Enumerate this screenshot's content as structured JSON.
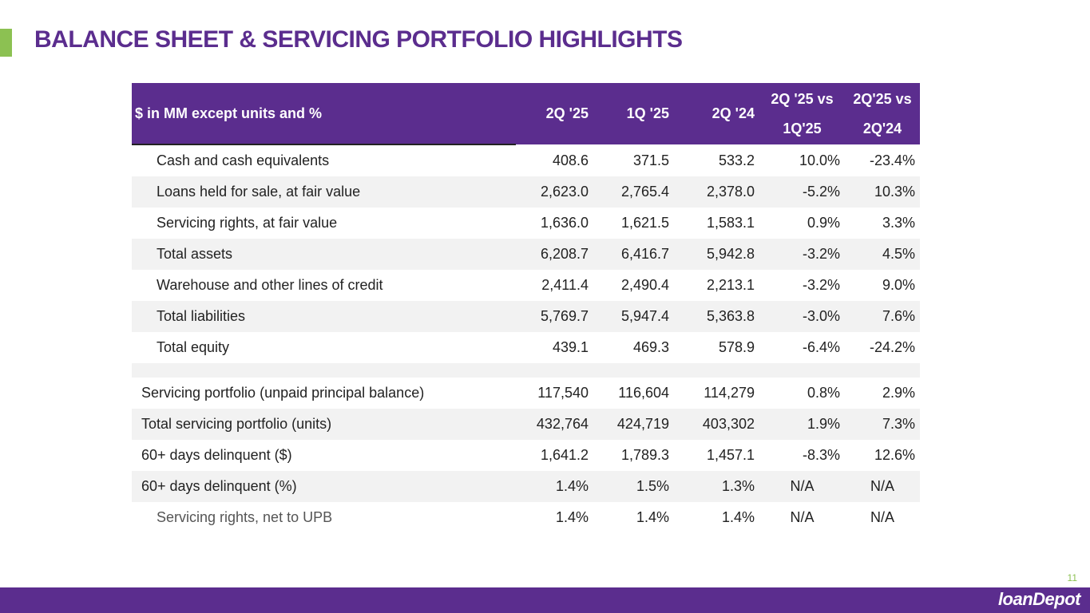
{
  "title": "BALANCE SHEET & SERVICING PORTFOLIO HIGHLIGHTS",
  "page_number": "11",
  "logo_text": "loanDepot",
  "table": {
    "headers": {
      "label": "$ in MM except units and %",
      "c1": "2Q '25",
      "c2": "1Q '25",
      "c3": "2Q '24",
      "c4_line1": "2Q '25 vs",
      "c4_line2": "1Q'25",
      "c5_line1": "2Q'25 vs",
      "c5_line2": "2Q'24"
    },
    "balance_rows": [
      {
        "label": "Cash and cash equivalents",
        "v": [
          "408.6",
          "371.5",
          "533.2",
          "10.0%",
          "-23.4%"
        ]
      },
      {
        "label": "Loans held for sale, at fair value",
        "v": [
          "2,623.0",
          "2,765.4",
          "2,378.0",
          "-5.2%",
          "10.3%"
        ]
      },
      {
        "label": "Servicing rights, at fair value",
        "v": [
          "1,636.0",
          "1,621.5",
          "1,583.1",
          "0.9%",
          "3.3%"
        ]
      },
      {
        "label": "Total assets",
        "v": [
          "6,208.7",
          "6,416.7",
          "5,942.8",
          "-3.2%",
          "4.5%"
        ]
      },
      {
        "label": "Warehouse and other lines of credit",
        "v": [
          "2,411.4",
          "2,490.4",
          "2,213.1",
          "-3.2%",
          "9.0%"
        ]
      },
      {
        "label": "Total liabilities",
        "v": [
          "5,769.7",
          "5,947.4",
          "5,363.8",
          "-3.0%",
          "7.6%"
        ]
      },
      {
        "label": "Total equity",
        "v": [
          "439.1",
          "469.3",
          "578.9",
          "-6.4%",
          "-24.2%"
        ]
      }
    ],
    "servicing_rows": [
      {
        "label": "Servicing portfolio (unpaid principal balance)",
        "v": [
          "117,540",
          "116,604",
          "114,279",
          "0.8%",
          "2.9%"
        ]
      },
      {
        "label": "Total servicing portfolio (units)",
        "v": [
          "432,764",
          "424,719",
          "403,302",
          "1.9%",
          "7.3%"
        ]
      },
      {
        "label": "60+ days delinquent ($)",
        "v": [
          "1,641.2",
          "1,789.3",
          "1,457.1",
          "-8.3%",
          "12.6%"
        ]
      },
      {
        "label": "60+ days delinquent (%)",
        "v": [
          "1.4%",
          "1.5%",
          "1.3%",
          "N/A",
          "N/A"
        ]
      },
      {
        "label": "Servicing rights, net to UPB",
        "v": [
          "1.4%",
          "1.4%",
          "1.4%",
          "N/A",
          "N/A"
        ]
      }
    ]
  },
  "colors": {
    "brand_purple": "#5b2d8e",
    "accent_green": "#8cc152"
  }
}
